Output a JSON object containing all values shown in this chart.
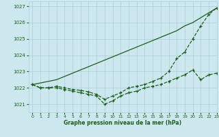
{
  "title": "Graphe pression niveau de la mer (hPa)",
  "bg_color": "#cce8ee",
  "grid_color": "#aacdd6",
  "line_color": "#1a5c1a",
  "xlim": [
    -0.5,
    23
  ],
  "ylim": [
    1020.5,
    1027.3
  ],
  "yticks": [
    1021,
    1022,
    1023,
    1024,
    1025,
    1026,
    1027
  ],
  "xticks": [
    0,
    1,
    2,
    3,
    4,
    5,
    6,
    7,
    8,
    9,
    10,
    11,
    12,
    13,
    14,
    15,
    16,
    17,
    18,
    19,
    20,
    21,
    22,
    23
  ],
  "series": [
    {
      "x": [
        0,
        1,
        2,
        3,
        4,
        5,
        6,
        7,
        8,
        9,
        10,
        11,
        12,
        13,
        14,
        15,
        16,
        17,
        18,
        19,
        20,
        21,
        22,
        23
      ],
      "y": [
        1022.2,
        1022.3,
        1022.4,
        1022.5,
        1022.7,
        1022.9,
        1023.1,
        1023.3,
        1023.5,
        1023.7,
        1023.9,
        1024.1,
        1024.3,
        1024.5,
        1024.7,
        1024.9,
        1025.1,
        1025.3,
        1025.5,
        1025.8,
        1026.0,
        1026.3,
        1026.6,
        1026.9
      ],
      "linestyle": "-",
      "marker": false
    },
    {
      "x": [
        0,
        1,
        2,
        3,
        4,
        5,
        6,
        7,
        8,
        9,
        10,
        11,
        12,
        13,
        14,
        15,
        16,
        17,
        18,
        19,
        20,
        21,
        22,
        23
      ],
      "y": [
        1022.2,
        1022.0,
        1022.0,
        1022.0,
        1021.9,
        1021.8,
        1021.7,
        1021.6,
        1021.5,
        1021.0,
        1021.2,
        1021.5,
        1021.7,
        1021.8,
        1022.0,
        1022.1,
        1022.2,
        1022.4,
        1022.6,
        1022.8,
        1023.1,
        1022.5,
        1022.8,
        1022.9
      ],
      "linestyle": "--",
      "marker": true
    },
    {
      "x": [
        0,
        1,
        2,
        3,
        4,
        5,
        6,
        7,
        8,
        9,
        10,
        11,
        12,
        13,
        14,
        15,
        16,
        17,
        18,
        19,
        20,
        21,
        22,
        23
      ],
      "y": [
        1022.2,
        1022.0,
        1022.0,
        1022.1,
        1022.0,
        1021.9,
        1021.85,
        1021.75,
        1021.6,
        1021.3,
        1021.5,
        1021.7,
        1022.0,
        1022.1,
        1022.2,
        1022.4,
        1022.6,
        1023.0,
        1023.8,
        1024.2,
        1025.0,
        1025.8,
        1026.5,
        1026.9
      ],
      "linestyle": "--",
      "marker": true
    }
  ]
}
